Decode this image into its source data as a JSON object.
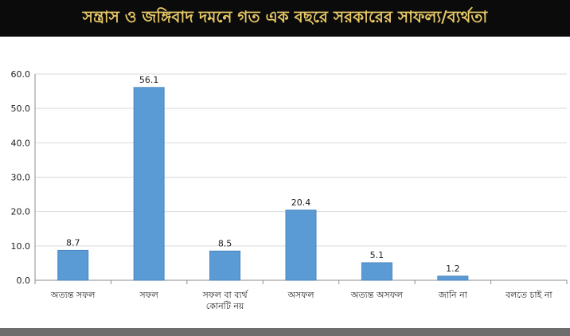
{
  "header": {
    "title": "সন্ত্রাস ও জঙ্গিবাদ দমনে গত এক বছরে সরকারের সাফল্য/ব্যর্থতা"
  },
  "chart_data": {
    "type": "bar",
    "categories": [
      "অত্যন্ত সফল",
      "সফল",
      "সফল বা ব্যর্থ কোনটি নয়",
      "অসফল",
      "অত্যন্ত অসফল",
      "জানি না",
      "বলতে চাই না"
    ],
    "category_lines": [
      [
        "অত্যন্ত সফল"
      ],
      [
        "সফল"
      ],
      [
        "সফল বা ব্যর্থ",
        "কোনটি নয়"
      ],
      [
        "অসফল"
      ],
      [
        "অত্যন্ত অসফল"
      ],
      [
        "জানি না"
      ],
      [
        "বলতে চাই না"
      ]
    ],
    "values": [
      8.7,
      56.1,
      8.5,
      20.4,
      5.1,
      1.2,
      null
    ],
    "data_labels": [
      "8.7",
      "56.1",
      "8.5",
      "20.4",
      "5.1",
      "1.2",
      ""
    ],
    "y_ticks": [
      "0.0",
      "10.0",
      "20.0",
      "30.0",
      "40.0",
      "50.0",
      "60.0"
    ],
    "ylim": [
      0,
      60
    ],
    "grid": true,
    "legend": "none",
    "title": "",
    "xlabel": "",
    "ylabel": ""
  },
  "colors": {
    "header_bg": "#0b0b0b",
    "header_text": "#e6c766",
    "bar_fill": "#5b9bd5",
    "bar_edge": "#4a86c0",
    "grid": "#d9d9d9",
    "axis": "#8c8c8c",
    "label_text": "#222222",
    "footer": "#6d6d6d"
  }
}
